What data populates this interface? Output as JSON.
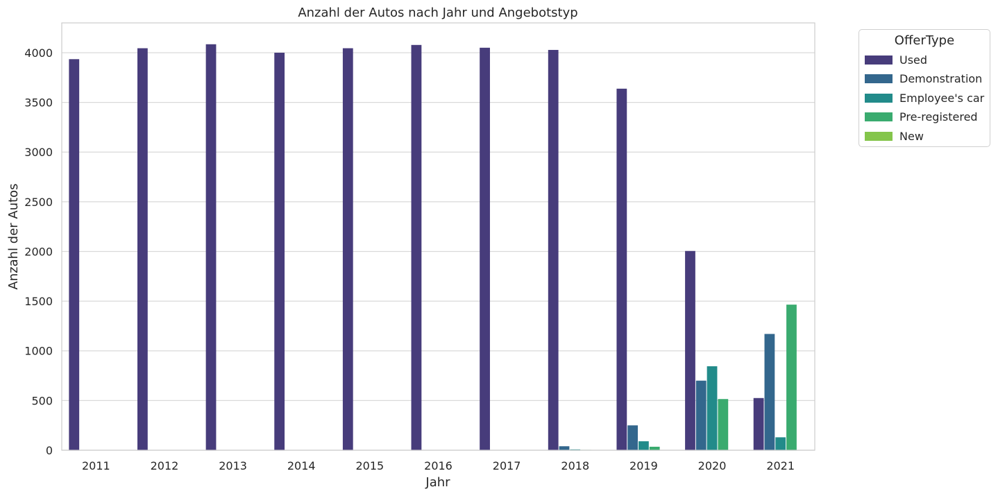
{
  "chart_data": {
    "type": "bar",
    "title": "Anzahl der Autos nach Jahr und Angebotstyp",
    "xlabel": "Jahr",
    "ylabel": "Anzahl der Autos",
    "categories": [
      "2011",
      "2012",
      "2013",
      "2014",
      "2015",
      "2016",
      "2017",
      "2018",
      "2019",
      "2020",
      "2021"
    ],
    "ylim": [
      0,
      4300
    ],
    "yticks": [
      0,
      500,
      1000,
      1500,
      2000,
      2500,
      3000,
      3500,
      4000
    ],
    "grid": true,
    "legend": {
      "title": "OfferType",
      "placement": "outside-top-right"
    },
    "series": [
      {
        "name": "Used",
        "color": "#473c7b",
        "values": [
          3935,
          4045,
          4085,
          4000,
          4045,
          4078,
          4050,
          4028,
          3638,
          2005,
          525
        ]
      },
      {
        "name": "Demonstration",
        "color": "#33678d",
        "values": [
          0,
          0,
          0,
          0,
          0,
          0,
          3,
          40,
          250,
          700,
          1170
        ]
      },
      {
        "name": "Employee's car",
        "color": "#228b8a",
        "values": [
          0,
          0,
          0,
          0,
          0,
          0,
          2,
          8,
          90,
          845,
          130
        ]
      },
      {
        "name": "Pre-registered",
        "color": "#3aab6f",
        "values": [
          0,
          0,
          0,
          0,
          0,
          0,
          0,
          4,
          35,
          515,
          1465
        ]
      },
      {
        "name": "New",
        "color": "#84c54b",
        "values": [
          0,
          0,
          0,
          0,
          0,
          0,
          0,
          0,
          0,
          0,
          0
        ]
      }
    ]
  }
}
